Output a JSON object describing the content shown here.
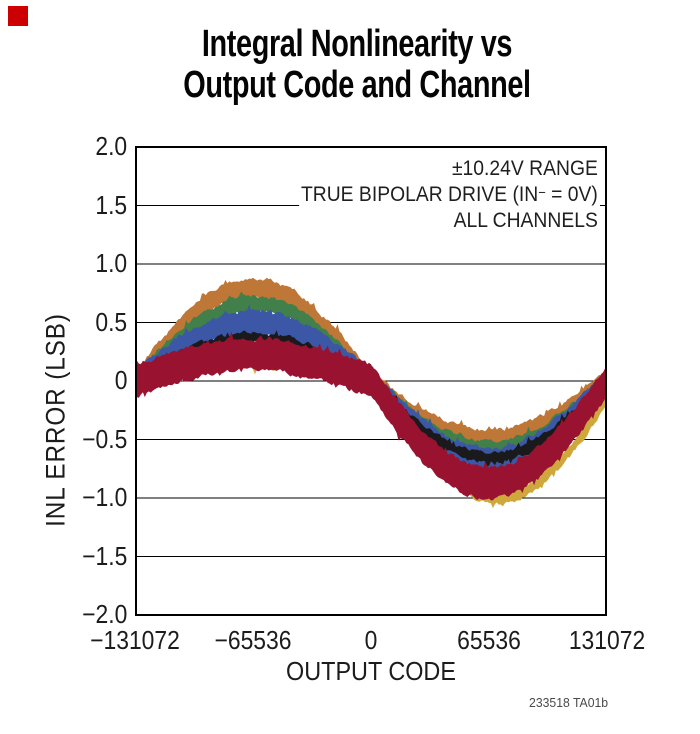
{
  "marker": {
    "color": "#cc0000"
  },
  "title": {
    "line1": "Integral Nonlinearity vs",
    "line2": "Output Code and Channel"
  },
  "annotation": {
    "line1": "±10.24V RANGE",
    "line2_prefix": "TRUE BIPOLAR DRIVE (IN",
    "line2_sup": "−",
    "line2_suffix": " = 0V)",
    "line3": "ALL CHANNELS"
  },
  "footnote": "233518 TA01b",
  "chart_data": {
    "type": "area",
    "title": "Integral Nonlinearity vs Output Code and Channel",
    "xlabel": "OUTPUT CODE",
    "ylabel": "INL ERROR (LSB)",
    "xlim": [
      -131072,
      131072
    ],
    "ylim": [
      -2.0,
      2.0
    ],
    "x_tick_values": [
      -131072,
      -65536,
      0,
      65536,
      131072
    ],
    "x_ticks": [
      "−131072",
      "−65536",
      "0",
      "65536",
      "131072"
    ],
    "y_tick_values": [
      2.0,
      1.5,
      1.0,
      0.5,
      0,
      -0.5,
      -1.0,
      -1.5,
      -2.0
    ],
    "y_ticks": [
      "2.0",
      "1.5",
      "1.0",
      "0.5",
      "0",
      "−0.5",
      "−1.0",
      "−1.5",
      "−2.0"
    ],
    "grid": "horizontal",
    "legend": "none",
    "annotations": [
      "±10.24V RANGE",
      "TRUE BIPOLAR DRIVE (IN− = 0V)",
      "ALL CHANNELS"
    ],
    "frame_color": "#000000",
    "gridline_color": "#000000",
    "shape_model": "center(t)=pos*max(0,-sin(pi*(t-shift*(t+1)/2))) - neg*max(0,sin(pi*(t-shift*(t+1)/2))); noisy band = center ± half; t = code/131072; all channels 0 LSB at both end codes, positive hump near code -78000, negative trough near code +72000",
    "noise_lsb": 0.035,
    "series": [
      {
        "name": "channel-yellow",
        "color": "#cfa83c",
        "pos": 0.16,
        "neg": 1.0,
        "half": 0.05,
        "shift": 0.05,
        "draw": 0,
        "peak_lsb": 0.16,
        "trough_lsb": -1.05
      },
      {
        "name": "channel-orange",
        "color": "#bf7737",
        "pos": 0.8,
        "neg": 0.5,
        "half": 0.08,
        "shift": 0,
        "draw": 1,
        "peak_lsb": 0.88,
        "trough_lsb": -0.58
      },
      {
        "name": "channel-green",
        "color": "#41804b",
        "pos": 0.66,
        "neg": 0.575,
        "half": 0.065,
        "shift": 0,
        "draw": 2,
        "peak_lsb": 0.73,
        "trough_lsb": -0.64
      },
      {
        "name": "channel-blue",
        "color": "#3b57a5",
        "pos": 0.5,
        "neg": 0.675,
        "half": 0.1,
        "shift": 0,
        "draw": 3,
        "peak_lsb": 0.6,
        "trough_lsb": -0.78
      },
      {
        "name": "channel-black",
        "color": "#1a1a1d",
        "pos": 0.375,
        "neg": 0.655,
        "half": 0.042,
        "shift": 0,
        "draw": 4,
        "peak_lsb": 0.42,
        "trough_lsb": -0.7
      },
      {
        "name": "channel-crimson",
        "color": "#991230",
        "pos": 0.23,
        "neg": 0.875,
        "half": 0.135,
        "shift": 0,
        "draw": 5,
        "peak_lsb": 0.37,
        "trough_lsb": -1.01
      }
    ]
  }
}
